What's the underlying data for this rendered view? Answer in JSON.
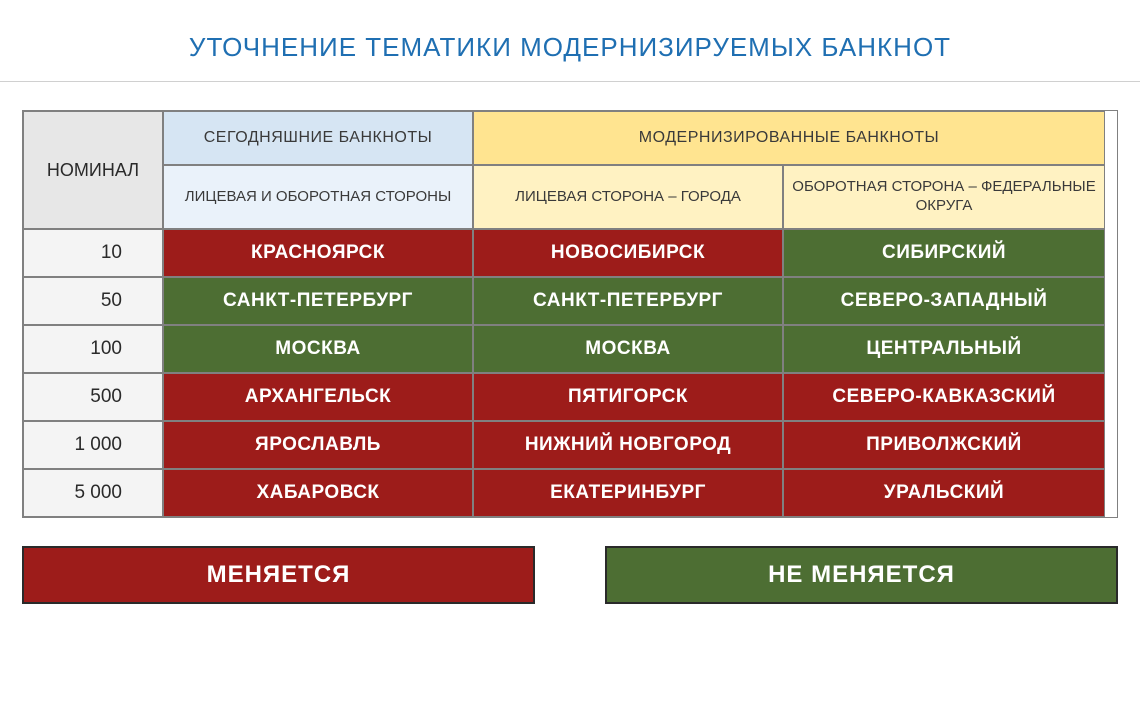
{
  "title": "УТОЧНЕНИЕ ТЕМАТИКИ МОДЕРНИЗИРУЕМЫХ БАНКНОТ",
  "headers": {
    "nominal": "НОМИНАЛ",
    "current": "СЕГОДНЯШНИЕ БАНКНОТЫ",
    "modernized": "МОДЕРНИЗИРОВАННЫЕ БАНКНОТЫ",
    "current_sub": "ЛИЦЕВАЯ И ОБОРОТНАЯ СТОРОНЫ",
    "modern_front": "ЛИЦЕВАЯ СТОРОНА – ГОРОДА",
    "modern_back": "ОБОРОТНАЯ СТОРОНА – ФЕДЕРАЛЬНЫЕ ОКРУГА"
  },
  "colors": {
    "red": "#9d1c1a",
    "green": "#4d6e33",
    "blue_header": "#d6e5f3",
    "blue_header_light": "#eaf2fa",
    "yellow_header": "#ffe490",
    "yellow_header_light": "#fff2c2",
    "title_color": "#1f6fb2"
  },
  "rows": [
    {
      "nominal": "10",
      "current": "КРАСНОЯРСК",
      "current_chg": true,
      "front": "НОВОСИБИРСК",
      "front_chg": true,
      "back": "СИБИРСКИЙ",
      "back_chg": false
    },
    {
      "nominal": "50",
      "current": "САНКТ-ПЕТЕРБУРГ",
      "current_chg": false,
      "front": "САНКТ-ПЕТЕРБУРГ",
      "front_chg": false,
      "back": "СЕВЕРО-ЗАПАДНЫЙ",
      "back_chg": false
    },
    {
      "nominal": "100",
      "current": "МОСКВА",
      "current_chg": false,
      "front": "МОСКВА",
      "front_chg": false,
      "back": "ЦЕНТРАЛЬНЫЙ",
      "back_chg": false
    },
    {
      "nominal": "500",
      "current": "АРХАНГЕЛЬСК",
      "current_chg": true,
      "front": "ПЯТИГОРСК",
      "front_chg": true,
      "back": "СЕВЕРО-КАВКАЗСКИЙ",
      "back_chg": true
    },
    {
      "nominal": "1 000",
      "current": "ЯРОСЛАВЛЬ",
      "current_chg": true,
      "front": "НИЖНИЙ НОВГОРОД",
      "front_chg": true,
      "back": "ПРИВОЛЖСКИЙ",
      "back_chg": true
    },
    {
      "nominal": "5 000",
      "current": "ХАБАРОВСК",
      "current_chg": true,
      "front": "ЕКАТЕРИНБУРГ",
      "front_chg": true,
      "back": "УРАЛЬСКИЙ",
      "back_chg": true
    }
  ],
  "legend": {
    "changes": "МЕНЯЕТСЯ",
    "no_changes": "НЕ МЕНЯЕТСЯ"
  }
}
